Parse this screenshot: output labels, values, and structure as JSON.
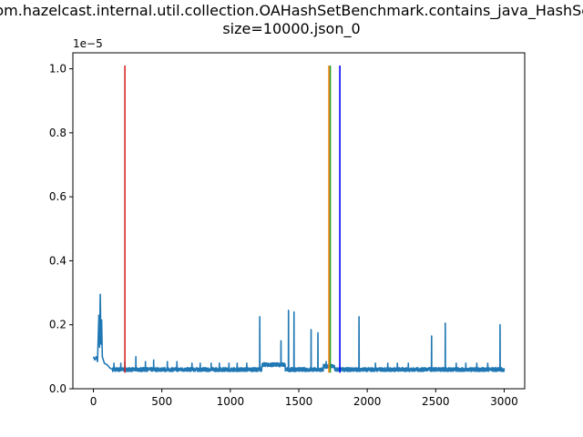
{
  "chart_data": {
    "type": "line",
    "title_line1": "com.hazelcast.internal.util.collection.OAHashSetBenchmark.contains_java_HashSet",
    "title_line2": "size=10000.json_0",
    "xlabel": "",
    "ylabel": "",
    "y_offset_label": "1e−5",
    "xlim": [
      -150,
      3150
    ],
    "ylim": [
      0.0,
      1.05
    ],
    "x_ticks": [
      0,
      500,
      1000,
      1500,
      2000,
      2500,
      3000
    ],
    "x_tick_labels": [
      "0",
      "500",
      "1000",
      "1500",
      "2000",
      "2500",
      "3000"
    ],
    "y_ticks": [
      0.0,
      0.2,
      0.4,
      0.6,
      0.8,
      1.0
    ],
    "y_tick_labels": [
      "0.0",
      "0.2",
      "0.4",
      "0.6",
      "0.8",
      "1.0"
    ],
    "grid": false,
    "series": [
      {
        "color": "#1f77b4",
        "x_start": 0,
        "x_end": 3000,
        "baseline": 0.06,
        "initial": [
          [
            0,
            0.1
          ],
          [
            10,
            0.09
          ],
          [
            20,
            0.1
          ],
          [
            30,
            0.085
          ],
          [
            40,
            0.23
          ],
          [
            45,
            0.13
          ],
          [
            50,
            0.295
          ],
          [
            55,
            0.14
          ],
          [
            60,
            0.215
          ],
          [
            65,
            0.1
          ],
          [
            80,
            0.08
          ],
          [
            100,
            0.075
          ],
          [
            120,
            0.065
          ],
          [
            140,
            0.06
          ]
        ],
        "spikes": [
          [
            150,
            0.08
          ],
          [
            200,
            0.08
          ],
          [
            230,
            0.085
          ],
          [
            310,
            0.1
          ],
          [
            380,
            0.085
          ],
          [
            440,
            0.09
          ],
          [
            540,
            0.085
          ],
          [
            610,
            0.085
          ],
          [
            720,
            0.08
          ],
          [
            780,
            0.08
          ],
          [
            860,
            0.08
          ],
          [
            920,
            0.08
          ],
          [
            990,
            0.08
          ],
          [
            1050,
            0.08
          ],
          [
            1120,
            0.08
          ],
          [
            1215,
            0.225
          ],
          [
            1370,
            0.15
          ],
          [
            1425,
            0.245
          ],
          [
            1465,
            0.24
          ],
          [
            1590,
            0.185
          ],
          [
            1640,
            0.175
          ],
          [
            1700,
            0.085
          ],
          [
            1940,
            0.225
          ],
          [
            2060,
            0.08
          ],
          [
            2150,
            0.08
          ],
          [
            2220,
            0.08
          ],
          [
            2300,
            0.08
          ],
          [
            2470,
            0.165
          ],
          [
            2570,
            0.205
          ],
          [
            2650,
            0.08
          ],
          [
            2720,
            0.08
          ],
          [
            2800,
            0.08
          ],
          [
            2880,
            0.08
          ],
          [
            2970,
            0.2
          ]
        ],
        "raised_segments": [
          [
            1230,
            1400,
            0.075
          ],
          [
            1680,
            1760,
            0.07
          ]
        ]
      }
    ],
    "vertical_lines": [
      {
        "x": 230,
        "y_min": 0.05,
        "y_max": 1.01,
        "color": "#d62728"
      },
      {
        "x": 1720,
        "y_min": 0.05,
        "y_max": 1.01,
        "color": "#ff7f0e"
      },
      {
        "x": 1730,
        "y_min": 0.05,
        "y_max": 1.01,
        "color": "#2ca02c"
      },
      {
        "x": 1800,
        "y_min": 0.05,
        "y_max": 1.01,
        "color": "#0000ff"
      }
    ]
  }
}
